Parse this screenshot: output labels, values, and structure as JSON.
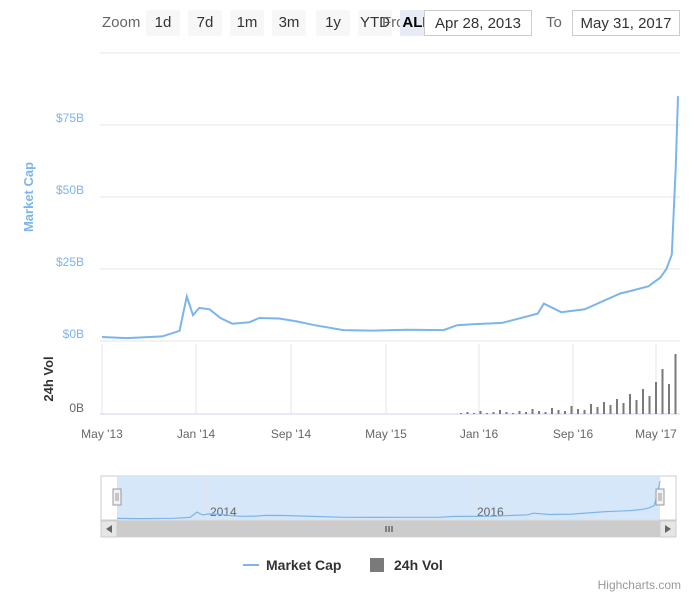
{
  "toolbar": {
    "zoom_label": "Zoom",
    "buttons": [
      "1d",
      "7d",
      "1m",
      "3m",
      "1y",
      "YTD",
      "ALL"
    ],
    "active": "ALL",
    "from_label": "From",
    "to_label": "To",
    "from_value": "Apr 28, 2013",
    "to_value": "May 31, 2017"
  },
  "colors": {
    "market_cap": "#7cb5ec",
    "volume": "#7a7a7a",
    "navigator_fill": "#cfe3f8"
  },
  "chart_data": {
    "type": "line",
    "title": "",
    "x_ticks": [
      "May '13",
      "Jan '14",
      "Sep '14",
      "May '15",
      "Jan '16",
      "Sep '16",
      "May '17"
    ],
    "navigator_ticks": [
      "2014",
      "2016"
    ],
    "market_cap_axis": {
      "label": "Market Cap",
      "ticks": [
        "$0B",
        "$25B",
        "$50B",
        "$75B"
      ],
      "range": [
        0,
        85
      ]
    },
    "volume_axis": {
      "label": "24h Vol",
      "ticks": [
        "0B"
      ]
    },
    "x_range": [
      "2013-04-28",
      "2017-05-31"
    ],
    "series": [
      {
        "name": "Market Cap",
        "unit": "$B",
        "x": [
          "2013-04-28",
          "2013-07-01",
          "2013-10-01",
          "2013-11-15",
          "2013-12-04",
          "2013-12-20",
          "2014-01-05",
          "2014-02-01",
          "2014-03-01",
          "2014-04-01",
          "2014-05-15",
          "2014-06-10",
          "2014-08-01",
          "2014-09-15",
          "2014-11-01",
          "2015-01-14",
          "2015-04-01",
          "2015-07-01",
          "2015-10-01",
          "2015-11-05",
          "2015-12-15",
          "2016-03-01",
          "2016-06-01",
          "2016-06-17",
          "2016-08-01",
          "2016-10-01",
          "2017-01-01",
          "2017-02-01",
          "2017-03-15",
          "2017-04-15",
          "2017-05-01",
          "2017-05-15",
          "2017-05-25",
          "2017-05-31"
        ],
        "values": [
          1.4,
          1.0,
          1.6,
          3.5,
          15.5,
          9.0,
          11.5,
          11.0,
          8.0,
          6.0,
          6.5,
          8.0,
          7.8,
          6.8,
          5.5,
          3.8,
          3.6,
          3.9,
          3.8,
          5.5,
          5.8,
          6.3,
          9.5,
          13.0,
          10.0,
          11.0,
          16.5,
          17.5,
          19.0,
          22.0,
          25.0,
          30.0,
          60.0,
          85.0
        ]
      },
      {
        "name": "24h Vol",
        "unit": "$B"
      }
    ]
  },
  "credits": "Highcharts.com"
}
